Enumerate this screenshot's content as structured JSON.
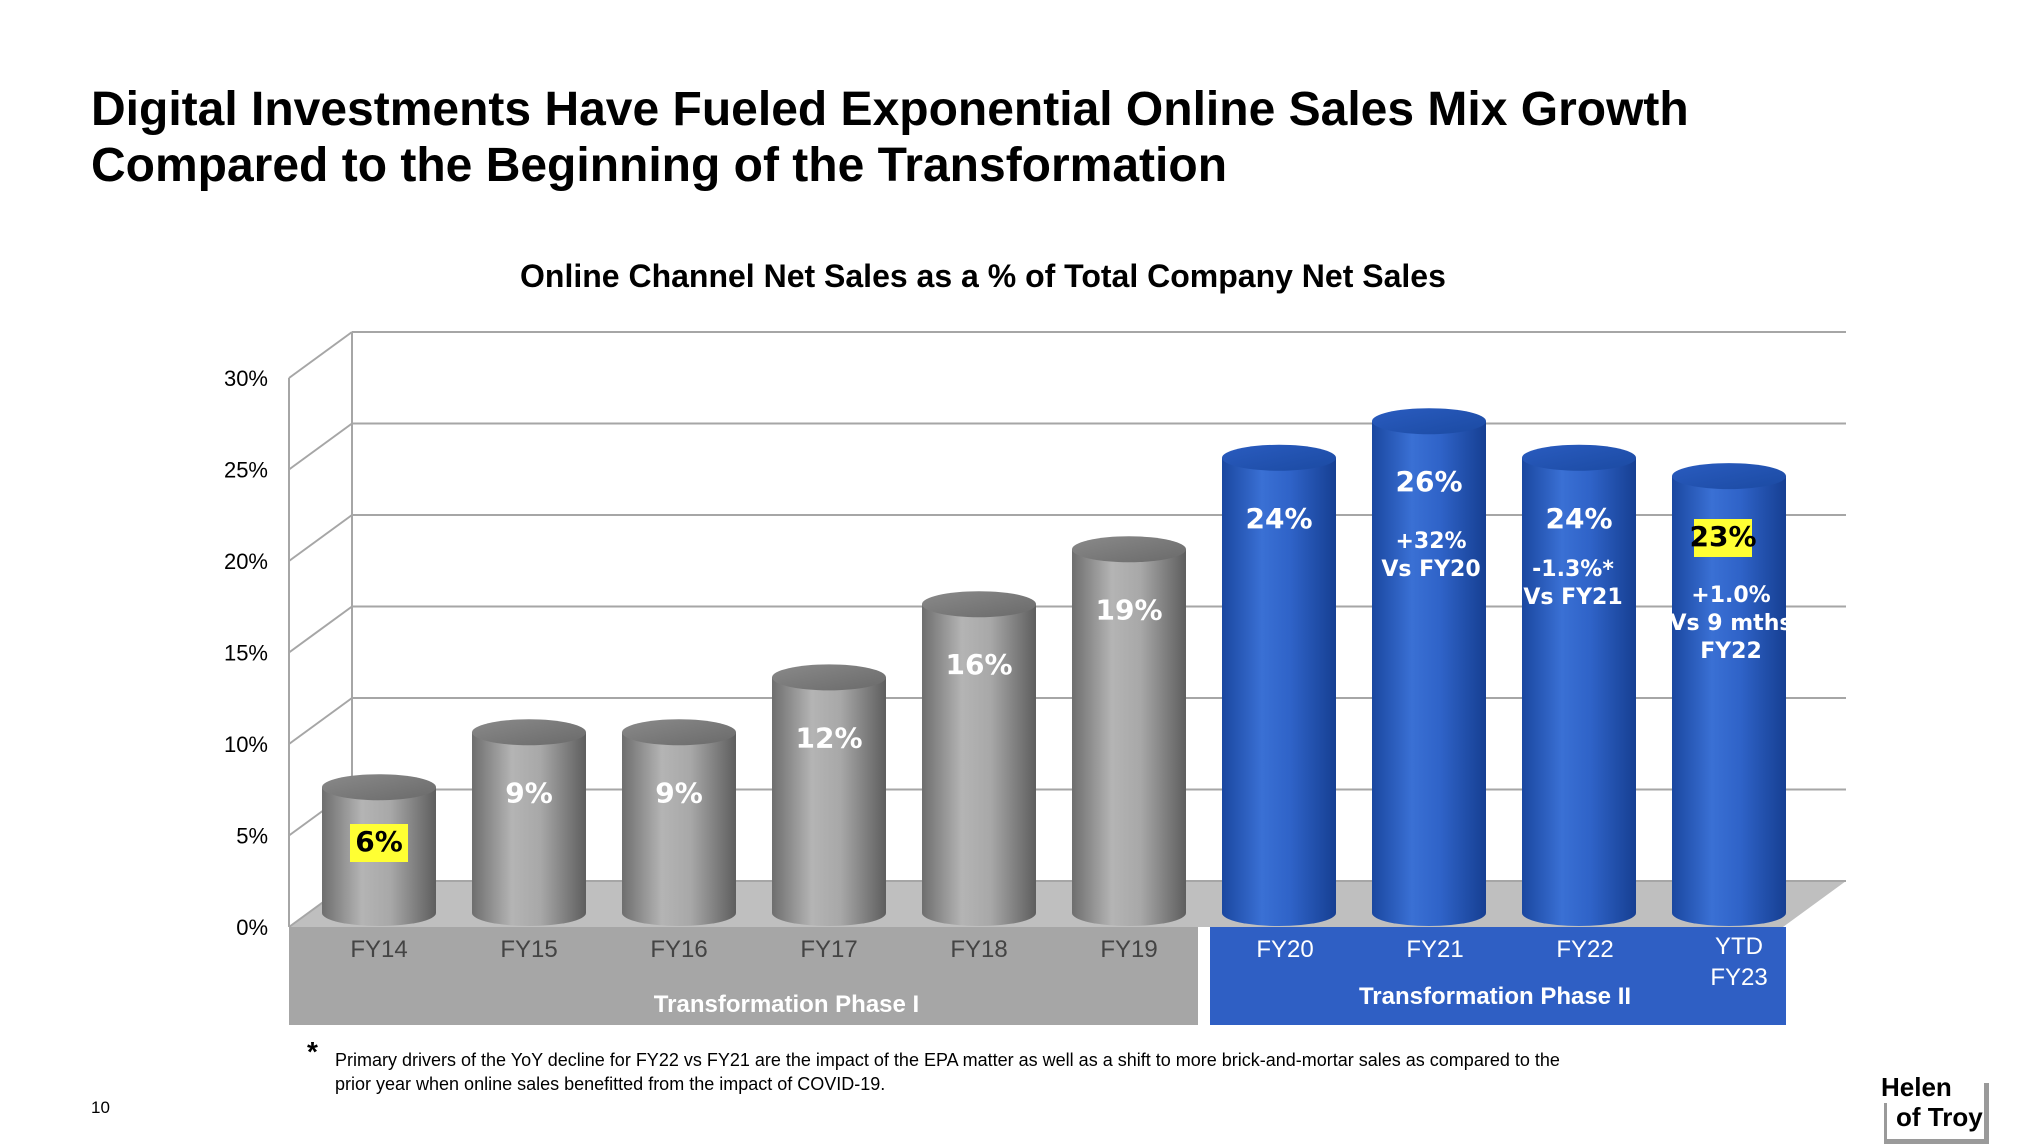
{
  "slide": {
    "title_line1": "Digital Investments Have Fueled Exponential Online Sales Mix Growth",
    "title_line2": "Compared to the Beginning of the Transformation",
    "page_number": "10",
    "footnote_mark": "*",
    "footnote_line1": "Primary drivers of the YoY decline for FY22 vs FY21 are the impact of the EPA matter as well as a shift to more brick-and-mortar sales as compared to the",
    "footnote_line2": "prior year when online sales benefitted from the impact of COVID-19.",
    "logo_line1": "Helen",
    "logo_line2": "of Troy"
  },
  "chart_data": {
    "type": "bar",
    "title": "Online Channel Net Sales as a % of Total Company Net Sales",
    "categories": [
      "FY14",
      "FY15",
      "FY16",
      "FY17",
      "FY18",
      "FY19",
      "FY20",
      "FY21",
      "FY22",
      "YTD FY23"
    ],
    "values": [
      6,
      9,
      9,
      12,
      16,
      19,
      24,
      26,
      24,
      23
    ],
    "value_labels": [
      "6%",
      "9%",
      "9%",
      "12%",
      "16%",
      "19%",
      "24%",
      "26%",
      "24%",
      "23%"
    ],
    "highlighted_labels": [
      "FY14",
      "YTD FY23"
    ],
    "annotations": [
      {
        "category": "FY21",
        "lines": [
          "+32%",
          "Vs FY20"
        ]
      },
      {
        "category": "FY22",
        "lines": [
          "-1.3%*",
          "Vs FY21"
        ]
      },
      {
        "category": "YTD FY23",
        "lines": [
          "+1.0%",
          "Vs 9 mths",
          "FY22"
        ]
      }
    ],
    "ylim": [
      0,
      30
    ],
    "yticks": [
      "0%",
      "5%",
      "10%",
      "15%",
      "20%",
      "25%",
      "30%"
    ],
    "phases": [
      {
        "label": "Transformation Phase I",
        "categories": [
          "FY14",
          "FY15",
          "FY16",
          "FY17",
          "FY18",
          "FY19"
        ],
        "color": "#a6a6a6"
      },
      {
        "label": "Transformation Phase II",
        "categories": [
          "FY20",
          "FY21",
          "FY22",
          "YTD FY23"
        ],
        "color": "#2f5fc4"
      }
    ],
    "colors": {
      "phase1_bar": "#a0a0a0",
      "phase2_bar": "#2a5fc0",
      "highlight": "#ffff33",
      "grid": "#a6a6a6"
    },
    "grid": true,
    "style": "3d-cylinder"
  }
}
